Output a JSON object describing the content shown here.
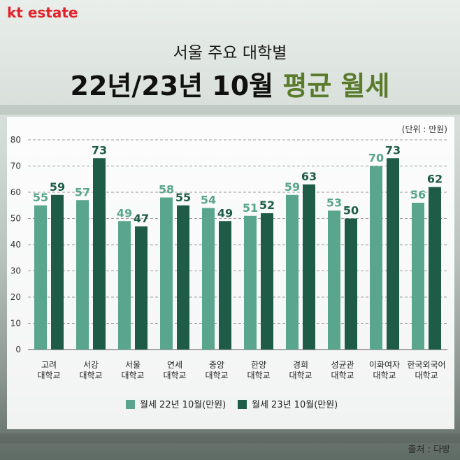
{
  "brand": {
    "kt": "kt",
    "estate": " estate"
  },
  "subtitle": "서울 주요 대학별",
  "title": {
    "main": "22년/23년 10월 ",
    "accent": "평균 월세"
  },
  "unit": "(단위 : 만원)",
  "source": "출처 : 다방",
  "colors": {
    "series1": "#5aa58d",
    "series2": "#1f5c48",
    "accent": "#5a7a2c",
    "brand": "#e2222a"
  },
  "chart_data": {
    "type": "bar",
    "categories": [
      [
        "고려",
        "대학교"
      ],
      [
        "서강",
        "대학교"
      ],
      [
        "서울",
        "대학교"
      ],
      [
        "연세",
        "대학교"
      ],
      [
        "중앙",
        "대학교"
      ],
      [
        "한양",
        "대학교"
      ],
      [
        "경희",
        "대학교"
      ],
      [
        "성균관",
        "대학교"
      ],
      [
        "이화여자",
        "대학교"
      ],
      [
        "한국외국어",
        "대학교"
      ]
    ],
    "series": [
      {
        "name": "월세 22년 10월(만원)",
        "values": [
          55,
          57,
          49,
          58,
          54,
          51,
          59,
          53,
          70,
          56
        ]
      },
      {
        "name": "월세 23년 10월(만원)",
        "values": [
          59,
          73,
          47,
          55,
          49,
          52,
          63,
          50,
          73,
          62
        ]
      }
    ],
    "yticks": [
      0,
      10,
      20,
      30,
      40,
      50,
      60,
      70,
      80
    ],
    "ylim": [
      0,
      80
    ],
    "legend": "bottom"
  }
}
